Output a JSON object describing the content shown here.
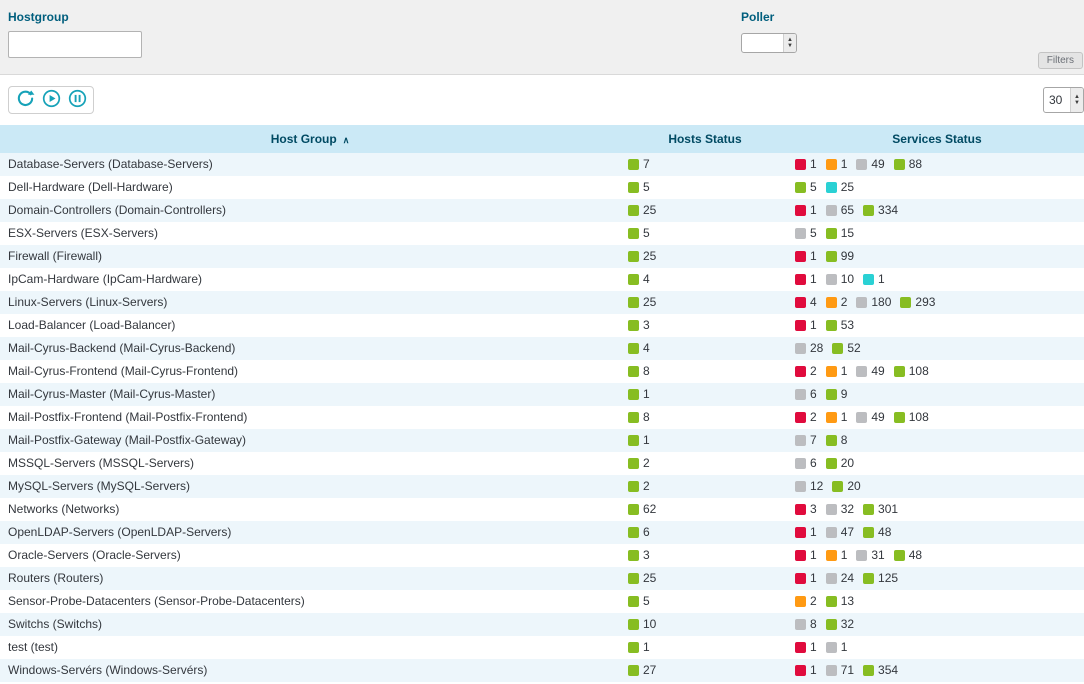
{
  "filters": {
    "hostgroup_label": "Hostgroup",
    "hostgroup_value": "",
    "poller_label": "Poller",
    "poller_value": "",
    "filters_button": "Filters"
  },
  "toolbar": {
    "page_size": "30"
  },
  "icons": {
    "sort_asc": "∧",
    "stepper_up": "▲",
    "stepper_down": "▼"
  },
  "colors": {
    "green": "#87bd22",
    "red": "#e00b3d",
    "orange": "#ff9a13",
    "gray": "#bcbdc0",
    "cyan": "#2ad1d4",
    "icon_teal": "#16a2b8"
  },
  "table": {
    "columns": [
      "Host Group",
      "Hosts Status",
      "Services Status"
    ],
    "rows": [
      {
        "name": "Database-Servers (Database-Servers)",
        "hosts": [
          {
            "c": "green",
            "v": 7
          }
        ],
        "services": [
          {
            "c": "red",
            "v": 1
          },
          {
            "c": "orange",
            "v": 1
          },
          {
            "c": "gray",
            "v": 49
          },
          {
            "c": "green",
            "v": 88
          }
        ]
      },
      {
        "name": "Dell-Hardware (Dell-Hardware)",
        "hosts": [
          {
            "c": "green",
            "v": 5
          }
        ],
        "services": [
          {
            "c": "green",
            "v": 5
          },
          {
            "c": "cyan",
            "v": 25
          }
        ]
      },
      {
        "name": "Domain-Controllers (Domain-Controllers)",
        "hosts": [
          {
            "c": "green",
            "v": 25
          }
        ],
        "services": [
          {
            "c": "red",
            "v": 1
          },
          {
            "c": "gray",
            "v": 65
          },
          {
            "c": "green",
            "v": 334
          }
        ]
      },
      {
        "name": "ESX-Servers (ESX-Servers)",
        "hosts": [
          {
            "c": "green",
            "v": 5
          }
        ],
        "services": [
          {
            "c": "gray",
            "v": 5
          },
          {
            "c": "green",
            "v": 15
          }
        ]
      },
      {
        "name": "Firewall (Firewall)",
        "hosts": [
          {
            "c": "green",
            "v": 25
          }
        ],
        "services": [
          {
            "c": "red",
            "v": 1
          },
          {
            "c": "green",
            "v": 99
          }
        ]
      },
      {
        "name": "IpCam-Hardware (IpCam-Hardware)",
        "hosts": [
          {
            "c": "green",
            "v": 4
          }
        ],
        "services": [
          {
            "c": "red",
            "v": 1
          },
          {
            "c": "gray",
            "v": 10
          },
          {
            "c": "cyan",
            "v": 1
          }
        ]
      },
      {
        "name": "Linux-Servers (Linux-Servers)",
        "hosts": [
          {
            "c": "green",
            "v": 25
          }
        ],
        "services": [
          {
            "c": "red",
            "v": 4
          },
          {
            "c": "orange",
            "v": 2
          },
          {
            "c": "gray",
            "v": 180
          },
          {
            "c": "green",
            "v": 293
          }
        ]
      },
      {
        "name": "Load-Balancer (Load-Balancer)",
        "hosts": [
          {
            "c": "green",
            "v": 3
          }
        ],
        "services": [
          {
            "c": "red",
            "v": 1
          },
          {
            "c": "green",
            "v": 53
          }
        ]
      },
      {
        "name": "Mail-Cyrus-Backend (Mail-Cyrus-Backend)",
        "hosts": [
          {
            "c": "green",
            "v": 4
          }
        ],
        "services": [
          {
            "c": "gray",
            "v": 28
          },
          {
            "c": "green",
            "v": 52
          }
        ]
      },
      {
        "name": "Mail-Cyrus-Frontend (Mail-Cyrus-Frontend)",
        "hosts": [
          {
            "c": "green",
            "v": 8
          }
        ],
        "services": [
          {
            "c": "red",
            "v": 2
          },
          {
            "c": "orange",
            "v": 1
          },
          {
            "c": "gray",
            "v": 49
          },
          {
            "c": "green",
            "v": 108
          }
        ]
      },
      {
        "name": "Mail-Cyrus-Master (Mail-Cyrus-Master)",
        "hosts": [
          {
            "c": "green",
            "v": 1
          }
        ],
        "services": [
          {
            "c": "gray",
            "v": 6
          },
          {
            "c": "green",
            "v": 9
          }
        ]
      },
      {
        "name": "Mail-Postfix-Frontend (Mail-Postfix-Frontend)",
        "hosts": [
          {
            "c": "green",
            "v": 8
          }
        ],
        "services": [
          {
            "c": "red",
            "v": 2
          },
          {
            "c": "orange",
            "v": 1
          },
          {
            "c": "gray",
            "v": 49
          },
          {
            "c": "green",
            "v": 108
          }
        ]
      },
      {
        "name": "Mail-Postfix-Gateway (Mail-Postfix-Gateway)",
        "hosts": [
          {
            "c": "green",
            "v": 1
          }
        ],
        "services": [
          {
            "c": "gray",
            "v": 7
          },
          {
            "c": "green",
            "v": 8
          }
        ]
      },
      {
        "name": "MSSQL-Servers (MSSQL-Servers)",
        "hosts": [
          {
            "c": "green",
            "v": 2
          }
        ],
        "services": [
          {
            "c": "gray",
            "v": 6
          },
          {
            "c": "green",
            "v": 20
          }
        ]
      },
      {
        "name": "MySQL-Servers (MySQL-Servers)",
        "hosts": [
          {
            "c": "green",
            "v": 2
          }
        ],
        "services": [
          {
            "c": "gray",
            "v": 12
          },
          {
            "c": "green",
            "v": 20
          }
        ]
      },
      {
        "name": "Networks (Networks)",
        "hosts": [
          {
            "c": "green",
            "v": 62
          }
        ],
        "services": [
          {
            "c": "red",
            "v": 3
          },
          {
            "c": "gray",
            "v": 32
          },
          {
            "c": "green",
            "v": 301
          }
        ]
      },
      {
        "name": "OpenLDAP-Servers (OpenLDAP-Servers)",
        "hosts": [
          {
            "c": "green",
            "v": 6
          }
        ],
        "services": [
          {
            "c": "red",
            "v": 1
          },
          {
            "c": "gray",
            "v": 47
          },
          {
            "c": "green",
            "v": 48
          }
        ]
      },
      {
        "name": "Oracle-Servers (Oracle-Servers)",
        "hosts": [
          {
            "c": "green",
            "v": 3
          }
        ],
        "services": [
          {
            "c": "red",
            "v": 1
          },
          {
            "c": "orange",
            "v": 1
          },
          {
            "c": "gray",
            "v": 31
          },
          {
            "c": "green",
            "v": 48
          }
        ]
      },
      {
        "name": "Routers (Routers)",
        "hosts": [
          {
            "c": "green",
            "v": 25
          }
        ],
        "services": [
          {
            "c": "red",
            "v": 1
          },
          {
            "c": "gray",
            "v": 24
          },
          {
            "c": "green",
            "v": 125
          }
        ]
      },
      {
        "name": "Sensor-Probe-Datacenters (Sensor-Probe-Datacenters)",
        "hosts": [
          {
            "c": "green",
            "v": 5
          }
        ],
        "services": [
          {
            "c": "orange",
            "v": 2
          },
          {
            "c": "green",
            "v": 13
          }
        ]
      },
      {
        "name": "Switchs (Switchs)",
        "hosts": [
          {
            "c": "green",
            "v": 10
          }
        ],
        "services": [
          {
            "c": "gray",
            "v": 8
          },
          {
            "c": "green",
            "v": 32
          }
        ]
      },
      {
        "name": "test (test)",
        "hosts": [
          {
            "c": "green",
            "v": 1
          }
        ],
        "services": [
          {
            "c": "red",
            "v": 1
          },
          {
            "c": "gray",
            "v": 1
          }
        ]
      },
      {
        "name": "Windows-Servérs (Windows-Servérs)",
        "hosts": [
          {
            "c": "green",
            "v": 27
          }
        ],
        "services": [
          {
            "c": "red",
            "v": 1
          },
          {
            "c": "gray",
            "v": 71
          },
          {
            "c": "green",
            "v": 354
          }
        ]
      }
    ]
  }
}
